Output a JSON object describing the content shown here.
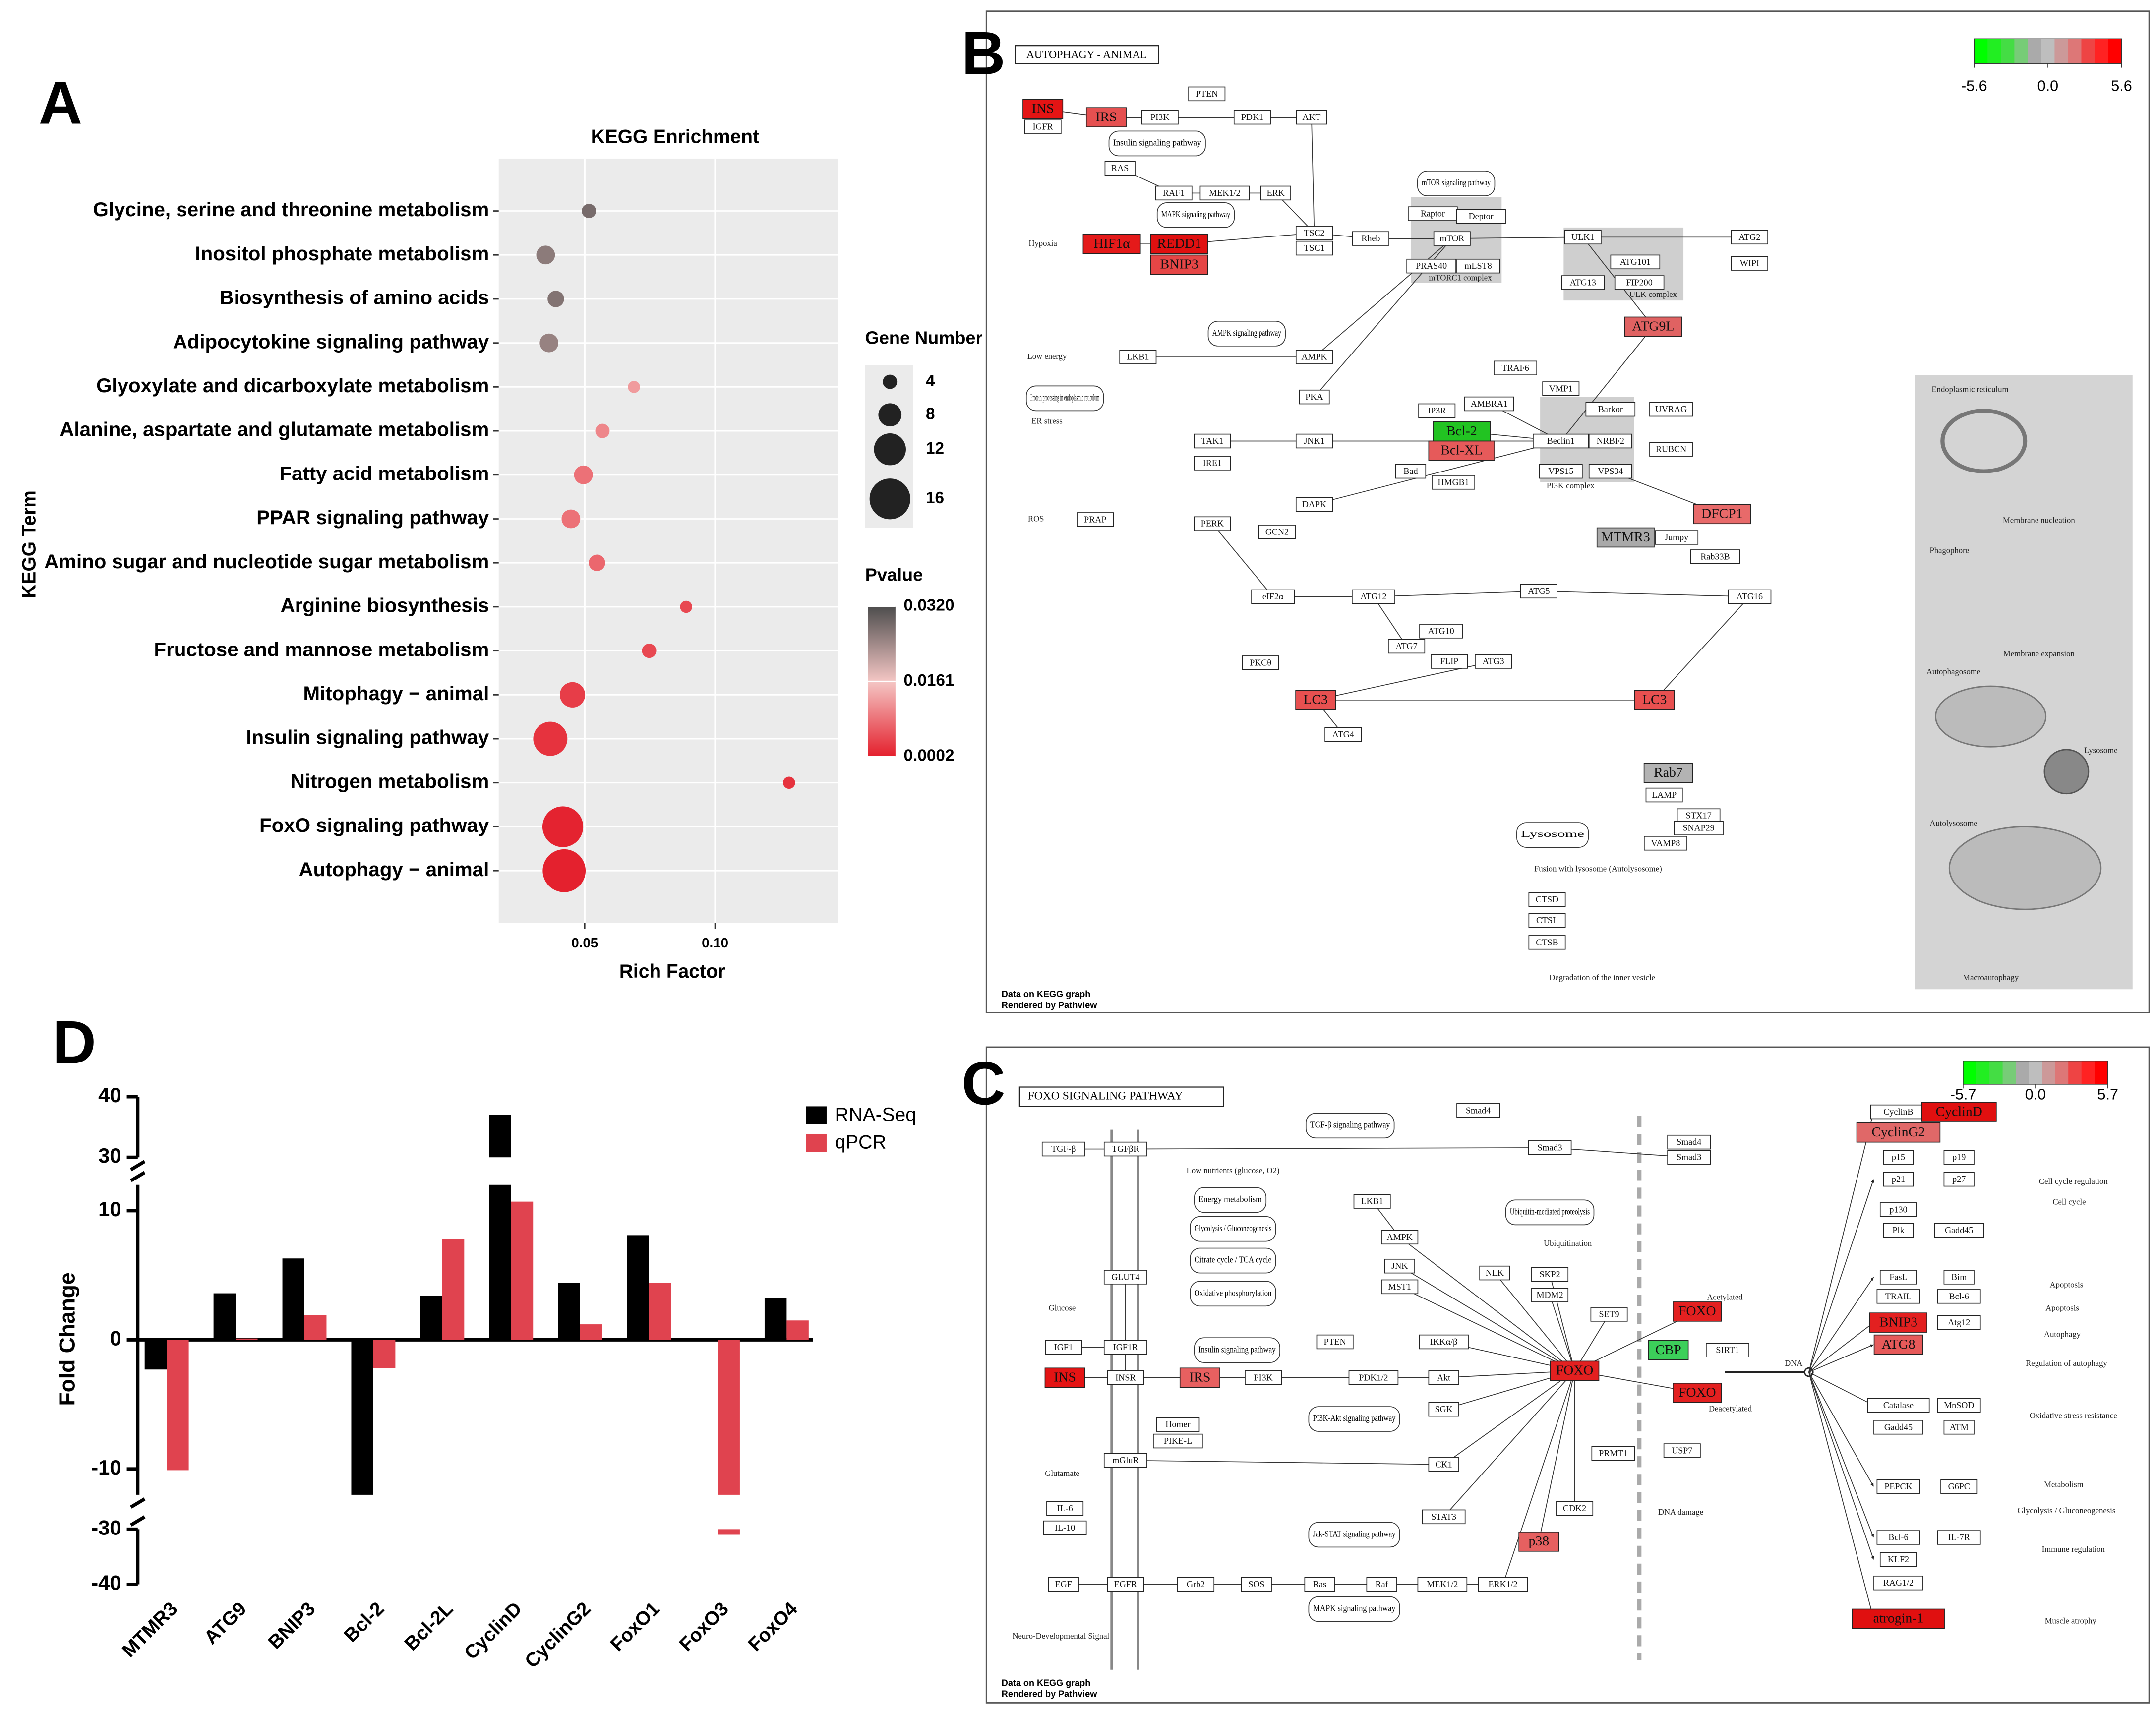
{
  "panel_labels": [
    "A",
    "B",
    "C",
    "D"
  ],
  "chart_data": [
    {
      "type": "scatter",
      "title": "KEGG Enrichment",
      "x_label": "Rich Factor",
      "y_label": "KEGG Term",
      "categories": [
        "Glycine, serine and threonine metabolism",
        "Inositol phosphate metabolism",
        "Biosynthesis of amino acids",
        "Adipocytokine signaling pathway",
        "Glyoxylate and dicarboxylate metabolism",
        "Alanine, aspartate and glutamate metabolism",
        "Fatty acid metabolism",
        "PPAR signaling pathway",
        "Amino sugar and nucleotide sugar metabolism",
        "Arginine biosynthesis",
        "Fructose and mannose metabolism",
        "Mitophagy − animal",
        "Insulin signaling pathway",
        "Nitrogen metabolism",
        "FoxO signaling pathway",
        "Autophagy − animal"
      ],
      "x": [
        0.0516,
        0.035,
        0.0389,
        0.0363,
        0.0689,
        0.0568,
        0.0495,
        0.0447,
        0.0547,
        0.0889,
        0.0747,
        0.0453,
        0.0368,
        0.1284,
        0.0416,
        0.0421
      ],
      "sizes": [
        4,
        6,
        5,
        6,
        3,
        4,
        6,
        6,
        5,
        3,
        4,
        9,
        13,
        3,
        16,
        17
      ],
      "pvalues": [
        0.028,
        0.026,
        0.027,
        0.025,
        0.012,
        0.01,
        0.008,
        0.008,
        0.007,
        0.004,
        0.004,
        0.003,
        0.002,
        0.002,
        0.0005,
        0.0003
      ],
      "size_legend_title": "Gene Number",
      "size_legend": [
        4,
        8,
        12,
        16
      ],
      "color_legend_title": "Pvalue",
      "colorscale": [
        "#e4202d",
        "#f4c6c4",
        "#4d4d4d"
      ],
      "cticks": [
        0.0002,
        0.0161,
        {
          "value": 0.032,
          "label": "0.0320"
        }
      ],
      "xlim": [
        0.017,
        0.147
      ],
      "xticks": [
        0.05,
        {
          "value": 0.1,
          "label": "0.10"
        }
      ],
      "grid": true
    },
    {
      "type": "bar",
      "y_label": "Fold Change",
      "categories": [
        "MTMR3",
        "ATG9",
        "BNIP3",
        "Bcl-2",
        "Bcl-2L",
        "CyclinD",
        "CyclinG2",
        "FoxO1",
        "FoxO3",
        "FoxO4"
      ],
      "series": [
        {
          "name": "RNA-Seq",
          "color": "#000000",
          "values": [
            -2.3,
            3.6,
            6.3,
            -12,
            3.4,
            37,
            4.4,
            8.1,
            0,
            3.2
          ]
        },
        {
          "name": "qPCR",
          "color": "#e0434f",
          "values": [
            -10.1,
            0.1,
            1.9,
            -2.2,
            7.8,
            10.7,
            1.2,
            4.4,
            -31,
            1.5
          ]
        }
      ],
      "ylim": [
        -40,
        40
      ],
      "axis_segments": [
        [
          -40,
          -30
        ],
        [
          -12,
          12
        ],
        [
          30,
          40
        ]
      ],
      "yticks": [
        -40,
        -30,
        -10,
        0,
        10,
        30,
        40
      ],
      "legend": "top-right"
    }
  ],
  "pathway_b": {
    "title": "AUTOPHAGY - ANIMAL",
    "legend_ticks": [
      -5.6,
      {
        "value": 0,
        "label": "0.0"
      },
      5.6
    ],
    "legend_colors": [
      "#00ff00",
      "#22ee22",
      "#44dd44",
      "#77cc77",
      "#aaaaaa",
      "#bebebe",
      "#cc9999",
      "#dd7777",
      "#ee4444",
      "#ff2222",
      "#ff0000"
    ],
    "nodes": [
      {
        "label": "INS",
        "color": "#e41414"
      },
      {
        "label": "IGFR"
      },
      {
        "label": "IRS",
        "color": "#e65050"
      },
      {
        "label": "PI3K"
      },
      {
        "label": "PTEN"
      },
      {
        "label": "PDK1"
      },
      {
        "label": "AKT"
      },
      {
        "label": "RAS"
      },
      {
        "label": "RAF1"
      },
      {
        "label": "MEK1/2"
      },
      {
        "label": "ERK"
      },
      {
        "label": "HIF1α",
        "color": "#e41a1a"
      },
      {
        "label": "REDD1",
        "color": "#e01010"
      },
      {
        "label": "BNIP3",
        "color": "#e64646"
      },
      {
        "label": "TSC2"
      },
      {
        "label": "TSC1"
      },
      {
        "label": "Rheb"
      },
      {
        "label": "Raptor"
      },
      {
        "label": "Deptor"
      },
      {
        "label": "mTOR"
      },
      {
        "label": "PRAS40"
      },
      {
        "label": "mLST8"
      },
      {
        "label": "ULK1"
      },
      {
        "label": "ATG101"
      },
      {
        "label": "ATG13"
      },
      {
        "label": "FIP200"
      },
      {
        "label": "ATG2"
      },
      {
        "label": "WIPI"
      },
      {
        "label": "ATG9L",
        "color": "#e06262"
      },
      {
        "label": "LKB1"
      },
      {
        "label": "AMPK"
      },
      {
        "label": "PKA"
      },
      {
        "label": "TAK1"
      },
      {
        "label": "IRE1"
      },
      {
        "label": "JNK1"
      },
      {
        "label": "PERK"
      },
      {
        "label": "DAPK"
      },
      {
        "label": "PRAP"
      },
      {
        "label": "GCN2"
      },
      {
        "label": "eIF2α"
      },
      {
        "label": "IP3R"
      },
      {
        "label": "Bcl-2",
        "color": "#22c322"
      },
      {
        "label": "Bcl-XL",
        "color": "#e65a5a"
      },
      {
        "label": "Bad"
      },
      {
        "label": "HMGB1"
      },
      {
        "label": "AMBRA1"
      },
      {
        "label": "TRAF6"
      },
      {
        "label": "VMP1"
      },
      {
        "label": "Barkor"
      },
      {
        "label": "UVRAG"
      },
      {
        "label": "Beclin1"
      },
      {
        "label": "NRBF2"
      },
      {
        "label": "RUBCN"
      },
      {
        "label": "VPS15"
      },
      {
        "label": "VPS34"
      },
      {
        "label": "DFCP1",
        "color": "#e86a6a"
      },
      {
        "label": "MTMR3",
        "color": "#a9a9a9"
      },
      {
        "label": "Jumpy"
      },
      {
        "label": "Rab33B"
      },
      {
        "label": "ATG12"
      },
      {
        "label": "ATG5"
      },
      {
        "label": "ATG16"
      },
      {
        "label": "ATG10"
      },
      {
        "label": "ATG7"
      },
      {
        "label": "FLIP"
      },
      {
        "label": "ATG3"
      },
      {
        "label": "PKCθ"
      },
      {
        "label": "LC3",
        "color": "#e85050"
      },
      {
        "label": "LC3",
        "color": "#e85050"
      },
      {
        "label": "ATG4"
      },
      {
        "label": "Rab7",
        "color": "#b3b3b3"
      },
      {
        "label": "LAMP"
      },
      {
        "label": "STX17"
      },
      {
        "label": "SNAP29"
      },
      {
        "label": "VAMP8"
      },
      {
        "label": "CTSD"
      },
      {
        "label": "CTSL"
      },
      {
        "label": "CTSB"
      }
    ],
    "pathways": [
      "Insulin signaling pathway",
      "MAPK signaling pathway",
      "mTOR signaling pathway",
      "AMPK signaling pathway",
      "Protein processing in endoplasmic reticulum",
      "Lysosome"
    ],
    "notes": [
      "Hypoxia",
      "Low energy",
      "ER stress",
      "ROS",
      "Degradation of the inner vesicle",
      "Fusion with lysosome (Autolysosome)",
      "Endoplasmic reticulum",
      "Phagophore",
      "Autophagosome",
      "Autolysosome",
      "Macroautophagy",
      "Membrane nucleation",
      "Membrane expansion",
      "Lysosome",
      "ULK complex",
      "mTORC1 complex",
      "PI3K complex"
    ],
    "footer": [
      "Data on KEGG graph",
      "Rendered by Pathview"
    ]
  },
  "pathway_c": {
    "title": "FOXO SIGNALING PATHWAY",
    "legend_ticks": [
      -5.7,
      {
        "value": 0,
        "label": "0.0"
      },
      5.7
    ],
    "legend_colors": [
      "#00ff00",
      "#22ee22",
      "#44dd44",
      "#77cc77",
      "#aaaaaa",
      "#bebebe",
      "#cc9999",
      "#dd7777",
      "#ee4444",
      "#ff2222",
      "#ff0000"
    ],
    "nodes": [
      {
        "label": "TGF-β"
      },
      {
        "label": "TGFβR"
      },
      {
        "label": "GLUT4"
      },
      {
        "label": "IGF1"
      },
      {
        "label": "IGF1R"
      },
      {
        "label": "INS",
        "color": "#e41414"
      },
      {
        "label": "INSR"
      },
      {
        "label": "IRS",
        "color": "#e86060"
      },
      {
        "label": "PI3K"
      },
      {
        "label": "PTEN"
      },
      {
        "label": "PDK1/2"
      },
      {
        "label": "IKKα/β"
      },
      {
        "label": "Akt"
      },
      {
        "label": "SGK"
      },
      {
        "label": "Smad4"
      },
      {
        "label": "Smad3"
      },
      {
        "label": "Smad4"
      },
      {
        "label": "Smad3"
      },
      {
        "label": "LKB1"
      },
      {
        "label": "AMPK"
      },
      {
        "label": "JNK"
      },
      {
        "label": "MST1"
      },
      {
        "label": "NLK"
      },
      {
        "label": "SKP2"
      },
      {
        "label": "MDM2"
      },
      {
        "label": "SET9"
      },
      {
        "label": "FOXO",
        "color": "#e32020"
      },
      {
        "label": "CBP",
        "color": "#3ccf5a"
      },
      {
        "label": "SIRT1"
      },
      {
        "label": "FOXO",
        "color": "#e32020"
      },
      {
        "label": "FOXO",
        "color": "#e32020"
      },
      {
        "label": "USP7"
      },
      {
        "label": "PRMT1"
      },
      {
        "label": "CK1"
      },
      {
        "label": "CDK2"
      },
      {
        "label": "p38",
        "color": "#e66060"
      },
      {
        "label": "STAT3"
      },
      {
        "label": "mGluR"
      },
      {
        "label": "Homer"
      },
      {
        "label": "PIKE-L"
      },
      {
        "label": "IL-6"
      },
      {
        "label": "IL-10"
      },
      {
        "label": "EGF"
      },
      {
        "label": "EGFR"
      },
      {
        "label": "Grb2"
      },
      {
        "label": "SOS"
      },
      {
        "label": "Ras"
      },
      {
        "label": "Raf"
      },
      {
        "label": "MEK1/2"
      },
      {
        "label": "ERK1/2"
      },
      {
        "label": "CyclinB"
      },
      {
        "label": "CyclinD",
        "color": "#e01010"
      },
      {
        "label": "CyclinG2",
        "color": "#e06868"
      },
      {
        "label": "p15"
      },
      {
        "label": "p19"
      },
      {
        "label": "p21"
      },
      {
        "label": "p27"
      },
      {
        "label": "p130"
      },
      {
        "label": "Plk"
      },
      {
        "label": "Gadd45"
      },
      {
        "label": "FasL"
      },
      {
        "label": "Bim"
      },
      {
        "label": "TRAIL"
      },
      {
        "label": "Bcl-6"
      },
      {
        "label": "BNIP3",
        "color": "#e32020"
      },
      {
        "label": "Atg12"
      },
      {
        "label": "ATG8",
        "color": "#e65a5a"
      },
      {
        "label": "Catalase"
      },
      {
        "label": "MnSOD"
      },
      {
        "label": "Gadd45"
      },
      {
        "label": "ATM"
      },
      {
        "label": "PEPCK"
      },
      {
        "label": "G6PC"
      },
      {
        "label": "Bcl-6"
      },
      {
        "label": "IL-7R"
      },
      {
        "label": "KLF2"
      },
      {
        "label": "RAG1/2"
      },
      {
        "label": "atrogin-1",
        "color": "#e01010"
      }
    ],
    "pathways": [
      "TGF-β signaling pathway",
      "Energy metabolism",
      "Glycolysis / Gluconeogenesis",
      "Citrate cycle / TCA cycle",
      "Oxidative phosphorylation",
      "Insulin signaling pathway",
      "Ubiquitin-mediated proteolysis",
      "PI3K-Akt signaling pathway",
      "Jak-STAT signaling pathway",
      "MAPK signaling pathway"
    ],
    "notes": [
      "Glucose",
      "Glutamate",
      "Low nutrients (glucose, O2)",
      "Acetylated",
      "Deacetylated",
      "DNA",
      "DNA damage",
      "Ubiquitination",
      "Cell cycle regulation",
      "Cell cycle",
      "Apoptosis",
      "Apoptosis",
      "Autophagy",
      "Regulation of autophagy",
      "Oxidative stress resistance",
      "Metabolism",
      "Glycolysis / Gluconeogenesis",
      "Immune regulation",
      "Muscle atrophy",
      "Neuro-Developmental Signal"
    ],
    "footer": [
      "Data on KEGG graph",
      "Rendered by Pathview"
    ]
  }
}
